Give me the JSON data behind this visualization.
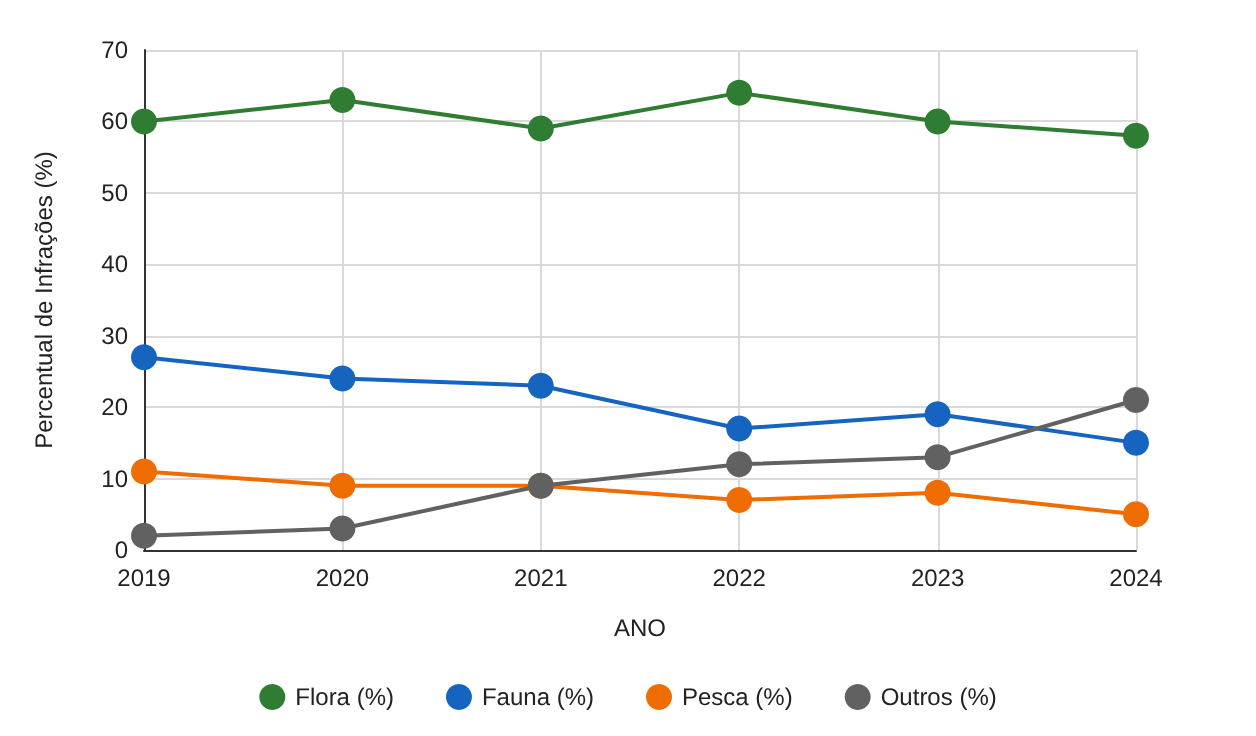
{
  "chart_data": {
    "type": "line",
    "xlabel": "ANO",
    "ylabel": "Percentual de Infrações (%)",
    "categories": [
      "2019",
      "2020",
      "2021",
      "2022",
      "2023",
      "2024"
    ],
    "series": [
      {
        "name": "Flora (%)",
        "color": "#2e7d32",
        "values": [
          60,
          63,
          59,
          64,
          60,
          58
        ]
      },
      {
        "name": "Fauna (%)",
        "color": "#1565c0",
        "values": [
          27,
          24,
          23,
          17,
          19,
          15
        ]
      },
      {
        "name": "Pesca (%)",
        "color": "#ef6c00",
        "values": [
          11,
          9,
          9,
          7,
          8,
          5
        ]
      },
      {
        "name": "Outros (%)",
        "color": "#616161",
        "values": [
          2,
          3,
          9,
          12,
          13,
          21
        ]
      }
    ],
    "ylim": [
      0,
      70
    ],
    "yticks": [
      0,
      10,
      20,
      30,
      40,
      50,
      60,
      70
    ],
    "grid": true,
    "legend": "bottom",
    "marker": "circle",
    "line_style": "solid"
  }
}
